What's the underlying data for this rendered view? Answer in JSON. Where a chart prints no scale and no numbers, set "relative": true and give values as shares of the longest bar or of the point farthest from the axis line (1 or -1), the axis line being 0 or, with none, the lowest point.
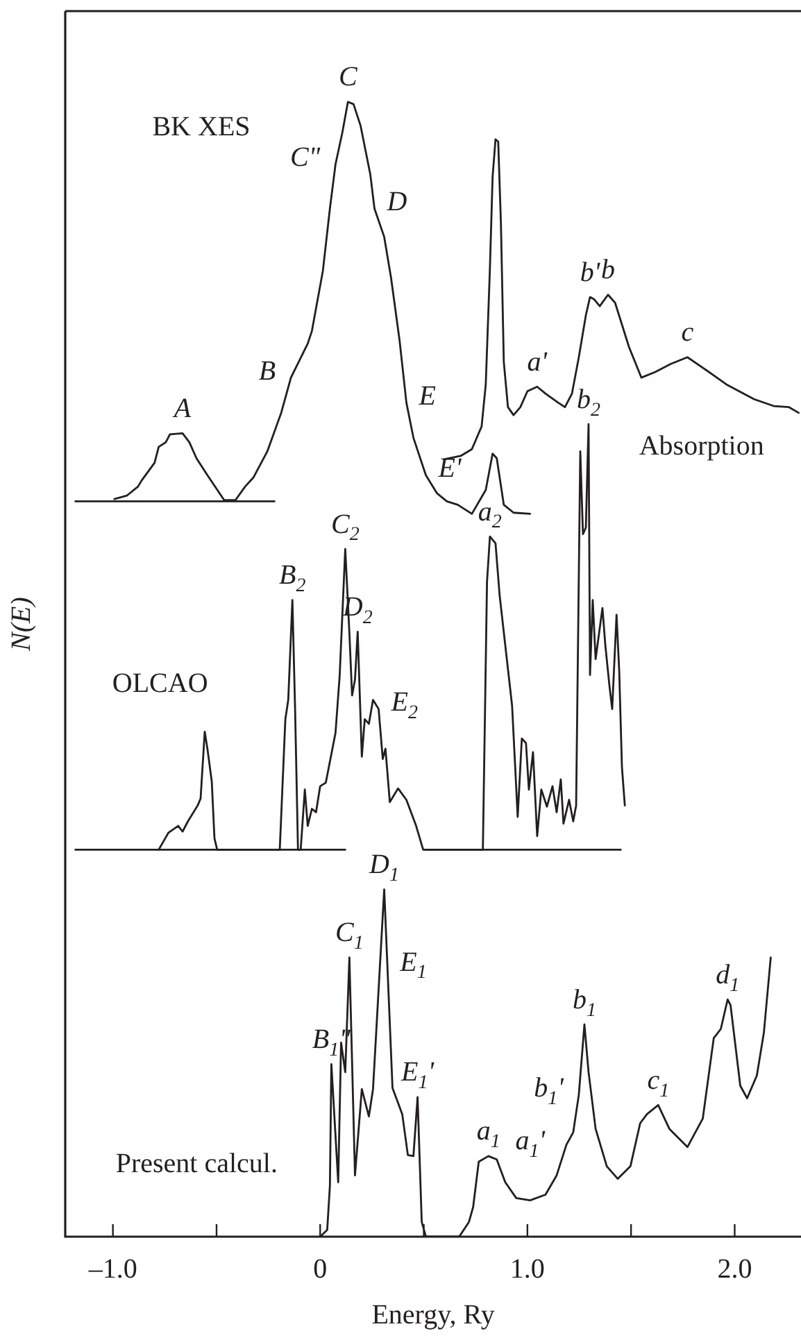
{
  "chart_data": {
    "type": "line",
    "relative": true,
    "marker": "none",
    "xlabel": "Energy, Ry",
    "ylabel": "N(E)",
    "xlim": [
      -1.23,
      2.32
    ],
    "xticks": [
      {
        "value": -1,
        "label": "–1.0"
      },
      {
        "value": -0.5,
        "label": null
      },
      0,
      {
        "value": 0.5,
        "label": null
      },
      {
        "value": 1,
        "label": "1.0"
      },
      {
        "value": 1.5,
        "label": null
      },
      {
        "value": 2,
        "label": "2.0"
      }
    ],
    "series": [
      {
        "color": "#231f20",
        "x": [
          -0.993,
          -0.933,
          -0.879,
          -0.859,
          -0.799,
          -0.779,
          -0.745,
          -0.725,
          -0.664,
          -0.631,
          -0.597,
          -0.544,
          -0.463,
          -0.409,
          -0.362,
          -0.322,
          -0.255,
          -0.188,
          -0.141,
          -0.06,
          -0.04,
          0.013,
          0.047,
          0.074,
          0.107,
          0.134,
          0.161,
          0.195,
          0.242,
          0.262,
          0.309,
          0.342,
          0.383,
          0.416,
          0.45,
          0.51,
          0.564,
          0.611,
          0.664,
          0.732,
          0.799,
          0.832,
          0.852,
          0.886,
          0.933,
          1.013
        ],
        "values": [
          0.65,
          0.653,
          0.661,
          0.667,
          0.682,
          0.696,
          0.7,
          0.707,
          0.708,
          0.7,
          0.686,
          0.671,
          0.649,
          0.649,
          0.661,
          0.669,
          0.692,
          0.726,
          0.757,
          0.787,
          0.798,
          0.851,
          0.906,
          0.945,
          0.973,
          1,
          0.998,
          0.979,
          0.936,
          0.906,
          0.881,
          0.845,
          0.79,
          0.735,
          0.704,
          0.671,
          0.655,
          0.648,
          0.645,
          0.637,
          0.658,
          0.69,
          0.686,
          0.645,
          0.638,
          0.637
        ]
      },
      {
        "name": "Absorption",
        "color": "#231f20",
        "x": [
          0.597,
          0.678,
          0.732,
          0.779,
          0.799,
          0.819,
          0.832,
          0.846,
          0.859,
          0.872,
          0.886,
          0.906,
          0.933,
          0.966,
          1.0,
          1.047,
          1.087,
          1.148,
          1.181,
          1.215,
          1.248,
          1.282,
          1.302,
          1.322,
          1.349,
          1.389,
          1.423,
          1.49,
          1.55,
          1.617,
          1.691,
          1.772,
          1.852,
          1.96,
          2.094,
          2.188,
          2.262,
          2.309
        ],
        "values": [
          0.685,
          0.688,
          0.694,
          0.714,
          0.751,
          0.853,
          0.934,
          0.967,
          0.965,
          0.894,
          0.771,
          0.731,
          0.724,
          0.731,
          0.745,
          0.749,
          0.743,
          0.735,
          0.731,
          0.743,
          0.775,
          0.812,
          0.828,
          0.826,
          0.82,
          0.83,
          0.823,
          0.784,
          0.757,
          0.762,
          0.769,
          0.775,
          0.765,
          0.751,
          0.738,
          0.732,
          0.731,
          0.726
        ]
      },
      {
        "color": "#231f20",
        "x": [
          -1.181,
          -0.221
        ],
        "values": [
          0.648,
          0.648
        ]
      },
      {
        "name": "OLCAO",
        "color": "#231f20",
        "x": [
          -0.779,
          -0.732,
          -0.685,
          -0.664,
          -0.638,
          -0.591,
          -0.577,
          -0.557,
          -0.544,
          -0.523,
          -0.51,
          -0.497,
          -0.195,
          -0.168,
          -0.154,
          -0.134,
          -0.121,
          -0.107,
          -0.094,
          -0.074,
          -0.06,
          -0.04,
          -0.02,
          0,
          0.027,
          0.074,
          0.094,
          0.121,
          0.141,
          0.154,
          0.168,
          0.181,
          0.201,
          0.215,
          0.235,
          0.255,
          0.282,
          0.302,
          0.315,
          0.336,
          0.376,
          0.416,
          0.463,
          0.497,
          0.785,
          0.805,
          0.819,
          0.846,
          0.866,
          0.926,
          0.953,
          0.973,
          0.993,
          1.007,
          1.027,
          1.047,
          1.067,
          1.094,
          1.121,
          1.141,
          1.161,
          1.174,
          1.201,
          1.221,
          1.235,
          1.255,
          1.268,
          1.282,
          1.295,
          1.302,
          1.315,
          1.329,
          1.362,
          1.376,
          1.396,
          1.409,
          1.43,
          1.443,
          1.456,
          1.47
        ],
        "values": [
          0.341,
          0.356,
          0.362,
          0.357,
          0.366,
          0.38,
          0.386,
          0.445,
          0.43,
          0.401,
          0.351,
          0.341,
          0.341,
          0.456,
          0.473,
          0.561,
          0.465,
          0.341,
          0.341,
          0.394,
          0.362,
          0.377,
          0.374,
          0.397,
          0.4,
          0.444,
          0.494,
          0.606,
          0.532,
          0.477,
          0.491,
          0.533,
          0.423,
          0.456,
          0.452,
          0.473,
          0.465,
          0.421,
          0.43,
          0.383,
          0.395,
          0.385,
          0.362,
          0.341,
          0.341,
          0.577,
          0.617,
          0.611,
          0.565,
          0.468,
          0.37,
          0.439,
          0.435,
          0.394,
          0.427,
          0.353,
          0.394,
          0.379,
          0.397,
          0.374,
          0.403,
          0.364,
          0.385,
          0.366,
          0.38,
          0.692,
          0.619,
          0.625,
          0.716,
          0.495,
          0.561,
          0.509,
          0.554,
          0.521,
          0.485,
          0.465,
          0.548,
          0.498,
          0.414,
          0.38
        ]
      },
      {
        "color": "#231f20",
        "x": [
          -1.181,
          0.121
        ],
        "values": [
          0.341,
          0.341
        ]
      },
      {
        "color": "#231f20",
        "x": [
          0.51,
          1.45
        ],
        "values": [
          0.341,
          0.341
        ]
      },
      {
        "name": "Present calcul.",
        "color": "#231f20",
        "x": [
          0,
          0.034,
          0.047,
          0.054,
          0.087,
          0.101,
          0.121,
          0.141,
          0.168,
          0.201,
          0.235,
          0.255,
          0.309,
          0.349,
          0.396,
          0.423,
          0.45,
          0.47,
          0.49,
          0.51,
          0.671,
          0.718,
          0.738,
          0.765,
          0.812,
          0.852,
          0.893,
          0.946,
          1.013,
          1.087,
          1.141,
          1.188,
          1.221,
          1.248,
          1.275,
          1.295,
          1.329,
          1.383,
          1.436,
          1.497,
          1.544,
          1.577,
          1.631,
          1.685,
          1.772,
          1.846,
          1.899,
          1.933,
          1.966,
          1.98,
          2.027,
          2.06,
          2.107,
          2.141,
          2.174
        ],
        "values": [
          0,
          0.006,
          0.045,
          0.152,
          0.048,
          0.171,
          0.145,
          0.246,
          0.054,
          0.13,
          0.106,
          0.13,
          0.306,
          0.131,
          0.108,
          0.072,
          0.071,
          0.123,
          0.013,
          0,
          0,
          0.013,
          0.026,
          0.066,
          0.071,
          0.068,
          0.048,
          0.034,
          0.032,
          0.037,
          0.054,
          0.081,
          0.092,
          0.125,
          0.187,
          0.145,
          0.095,
          0.062,
          0.051,
          0.062,
          0.1,
          0.108,
          0.116,
          0.095,
          0.079,
          0.104,
          0.175,
          0.183,
          0.209,
          0.204,
          0.133,
          0.122,
          0.142,
          0.18,
          0.246
        ]
      }
    ],
    "annotations": [
      "BK XES",
      {
        "text": "A",
        "x": -0.664,
        "y": 0.708
      },
      {
        "text": "B",
        "x": -0.141,
        "y": 0.757
      },
      {
        "text": "C",
        "x": 0.134,
        "y": 1
      },
      {
        "text": "C\"",
        "x": 0.074,
        "y": 0.945
      },
      {
        "text": "D",
        "x": 0.262,
        "y": 0.906
      },
      {
        "text": "E",
        "x": 0.416,
        "y": 0.735
      },
      {
        "text": "E'",
        "x": 0.51,
        "y": 0.671
      },
      {
        "text": "a'",
        "x": 1.047,
        "y": 0.749
      },
      {
        "text": "b'",
        "x": 1.302,
        "y": 0.828
      },
      {
        "text": "b",
        "x": 1.389,
        "y": 0.83
      },
      {
        "text": "c",
        "x": 1.772,
        "y": 0.775
      },
      {
        "text": "b$_{2}$",
        "x": 1.295,
        "y": 0.716
      },
      {
        "text": "a$_{2}$",
        "x": 0.819,
        "y": 0.617
      },
      {
        "text": "C$_{2}$",
        "x": 0.121,
        "y": 0.606
      },
      {
        "text": "B$_{2}$",
        "x": -0.134,
        "y": 0.561
      },
      {
        "text": "D$_{2}$",
        "x": 0.181,
        "y": 0.533
      },
      {
        "text": "E$_{2}$",
        "x": 0.282,
        "y": 0.465
      },
      {
        "text": "D$_{1}$",
        "x": 0.309,
        "y": 0.306
      },
      {
        "text": "C$_{1}$",
        "x": 0.141,
        "y": 0.246
      },
      {
        "text": "B$_{1}$\"",
        "x": 0.054,
        "y": 0.152
      },
      {
        "text": "E$_{1}$",
        "x": 0.325,
        "y": 0.236
      },
      {
        "text": "E$_{1}$'",
        "x": 0.47,
        "y": 0.123
      },
      {
        "text": "b$_{1}$",
        "x": 1.275,
        "y": 0.187
      },
      {
        "text": "b$_{1}$'",
        "x": 1.248,
        "y": 0.125
      },
      {
        "text": "c$_{1}$",
        "x": 1.631,
        "y": 0.116
      },
      {
        "text": "d$_{1}$",
        "x": 1.966,
        "y": 0.209
      },
      {
        "text": "a$_{1}$",
        "x": 0.812,
        "y": 0.071
      },
      {
        "text": "a$_{1}$'",
        "x": 1.013,
        "y": 0.032
      }
    ]
  }
}
